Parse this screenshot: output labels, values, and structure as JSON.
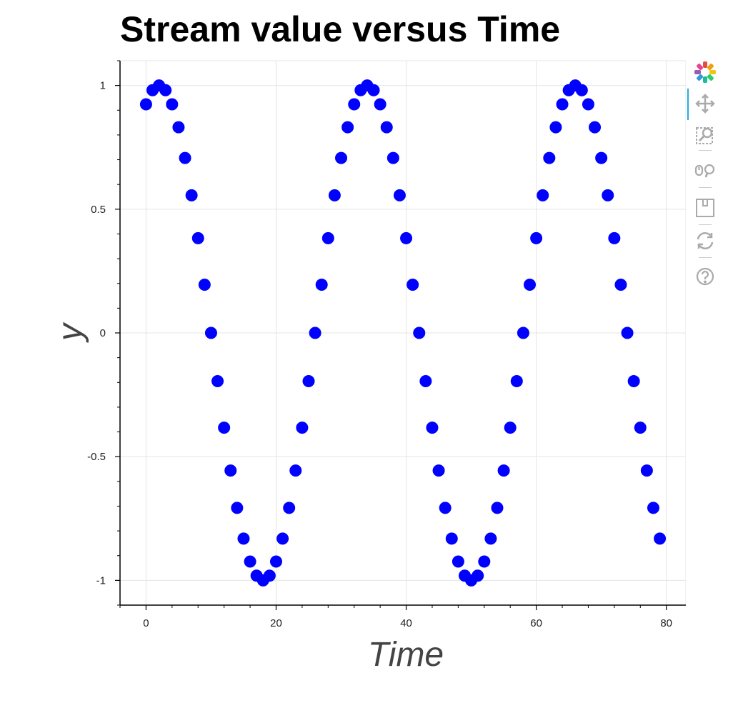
{
  "chart_data": {
    "type": "scatter",
    "title": "Stream value versus Time",
    "xlabel": "Time",
    "ylabel": "y",
    "xlim": [
      -4,
      83
    ],
    "ylim": [
      -1.1,
      1.1
    ],
    "x_ticks": [
      0,
      20,
      40,
      60,
      80
    ],
    "y_ticks": [
      -1,
      -0.5,
      0,
      0.5,
      1
    ],
    "y_tick_labels": [
      "-1",
      "-0.5",
      "0",
      "0.5",
      "1"
    ],
    "grid": true,
    "marker": "circle",
    "color": "#0000ff",
    "x": [
      0,
      1,
      2,
      3,
      4,
      5,
      6,
      7,
      8,
      9,
      10,
      11,
      12,
      13,
      14,
      15,
      16,
      17,
      18,
      19,
      20,
      21,
      22,
      23,
      24,
      25,
      26,
      27,
      28,
      29,
      30,
      31,
      32,
      33,
      34,
      35,
      36,
      37,
      38,
      39,
      40,
      41,
      42,
      43,
      44,
      45,
      46,
      47,
      48,
      49,
      50,
      51,
      52,
      53,
      54,
      55,
      56,
      57,
      58,
      59,
      60,
      61,
      62,
      63,
      64,
      65,
      66,
      67,
      68,
      69,
      70,
      71,
      72,
      73,
      74,
      75,
      76,
      77,
      78,
      79
    ],
    "y": [
      0.924,
      0.981,
      1.0,
      0.981,
      0.924,
      0.831,
      0.707,
      0.556,
      0.383,
      0.195,
      0.0,
      -0.195,
      -0.383,
      -0.556,
      -0.707,
      -0.831,
      -0.924,
      -0.981,
      -1.0,
      -0.981,
      -0.924,
      -0.831,
      -0.707,
      -0.556,
      -0.383,
      -0.195,
      0.0,
      0.195,
      0.383,
      0.556,
      0.707,
      0.831,
      0.924,
      0.981,
      1.0,
      0.981,
      0.924,
      0.831,
      0.707,
      0.556,
      0.383,
      0.195,
      0.0,
      -0.195,
      -0.383,
      -0.556,
      -0.707,
      -0.831,
      -0.924,
      -0.981,
      -1.0,
      -0.981,
      -0.924,
      -0.831,
      -0.707,
      -0.556,
      -0.383,
      -0.195,
      0.0,
      0.195,
      0.383,
      0.556,
      0.707,
      0.831,
      0.924,
      0.981,
      1.0,
      0.981,
      0.924,
      0.831,
      0.707,
      0.556,
      0.383,
      0.195,
      0.0,
      -0.195,
      -0.383,
      -0.556,
      -0.707,
      -0.831
    ]
  },
  "toolbar": {
    "tools": [
      "bokeh-logo-icon",
      "pan-icon",
      "box-zoom-icon",
      "wheel-zoom-icon",
      "save-icon",
      "reset-icon",
      "help-icon"
    ],
    "active": "pan-icon",
    "icon_color": "#aaaaaa",
    "active_color": "#26aae1"
  }
}
